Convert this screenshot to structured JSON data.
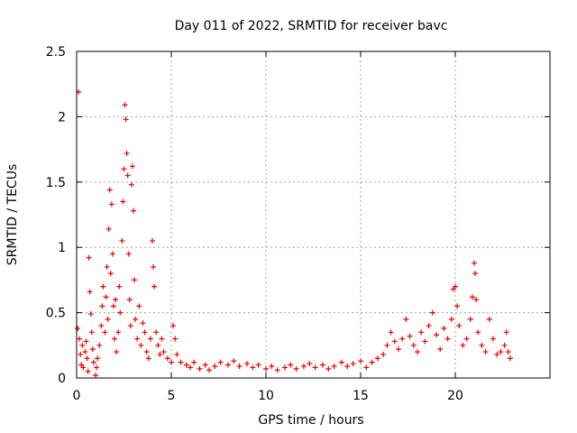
{
  "chart_data": {
    "type": "scatter",
    "title": "Day 011 of 2022, SRMTID for receiver bavc",
    "xlabel": "GPS time / hours",
    "ylabel": "SRMTID / TECUs",
    "xlim": [
      0,
      25
    ],
    "ylim": [
      0,
      2.5
    ],
    "x_ticks": [
      0,
      5,
      10,
      15,
      20
    ],
    "x_tick_labels": [
      "0",
      "5",
      "10",
      "15",
      "20"
    ],
    "y_ticks": [
      0,
      0.5,
      1,
      1.5,
      2,
      2.5
    ],
    "y_tick_labels": [
      "0",
      "0.5",
      "1",
      "1.5",
      "2",
      "2.5"
    ],
    "grid": true,
    "marker": "+",
    "color": "#ee0000",
    "series": [
      {
        "name": "SRMTID",
        "points": [
          [
            0.05,
            0.38
          ],
          [
            0.1,
            2.19
          ],
          [
            0.15,
            0.3
          ],
          [
            0.2,
            0.18
          ],
          [
            0.25,
            0.1
          ],
          [
            0.3,
            0.25
          ],
          [
            0.35,
            0.08
          ],
          [
            0.45,
            0.2
          ],
          [
            0.5,
            0.28
          ],
          [
            0.55,
            0.15
          ],
          [
            0.6,
            0.05
          ],
          [
            0.65,
            0.92
          ],
          [
            0.7,
            0.66
          ],
          [
            0.75,
            0.49
          ],
          [
            0.8,
            0.35
          ],
          [
            0.85,
            0.22
          ],
          [
            0.9,
            0.12
          ],
          [
            1.0,
            0.02
          ],
          [
            1.05,
            0.08
          ],
          [
            1.1,
            0.15
          ],
          [
            1.2,
            0.25
          ],
          [
            1.3,
            0.4
          ],
          [
            1.35,
            0.55
          ],
          [
            1.4,
            0.7
          ],
          [
            1.5,
            0.35
          ],
          [
            1.55,
            0.62
          ],
          [
            1.6,
            0.85
          ],
          [
            1.65,
            0.45
          ],
          [
            1.7,
            1.14
          ],
          [
            1.75,
            1.44
          ],
          [
            1.8,
            0.8
          ],
          [
            1.85,
            1.33
          ],
          [
            1.9,
            0.95
          ],
          [
            1.95,
            0.55
          ],
          [
            2.0,
            0.3
          ],
          [
            2.05,
            0.6
          ],
          [
            2.1,
            0.2
          ],
          [
            2.2,
            0.35
          ],
          [
            2.25,
            0.7
          ],
          [
            2.3,
            0.5
          ],
          [
            2.4,
            1.05
          ],
          [
            2.45,
            1.35
          ],
          [
            2.5,
            1.6
          ],
          [
            2.55,
            2.09
          ],
          [
            2.6,
            1.98
          ],
          [
            2.65,
            1.72
          ],
          [
            2.7,
            1.55
          ],
          [
            2.75,
            0.95
          ],
          [
            2.8,
            0.6
          ],
          [
            2.85,
            0.4
          ],
          [
            2.9,
            1.48
          ],
          [
            2.95,
            1.62
          ],
          [
            3.0,
            1.28
          ],
          [
            3.05,
            0.75
          ],
          [
            3.1,
            0.45
          ],
          [
            3.2,
            0.3
          ],
          [
            3.3,
            0.55
          ],
          [
            3.4,
            0.25
          ],
          [
            3.5,
            0.42
          ],
          [
            3.6,
            0.35
          ],
          [
            3.7,
            0.2
          ],
          [
            3.8,
            0.15
          ],
          [
            3.9,
            0.3
          ],
          [
            4.0,
            1.05
          ],
          [
            4.05,
            0.85
          ],
          [
            4.1,
            0.7
          ],
          [
            4.2,
            0.35
          ],
          [
            4.3,
            0.25
          ],
          [
            4.4,
            0.18
          ],
          [
            4.5,
            0.3
          ],
          [
            4.6,
            0.2
          ],
          [
            4.8,
            0.15
          ],
          [
            5.0,
            0.12
          ],
          [
            5.1,
            0.4
          ],
          [
            5.2,
            0.3
          ],
          [
            5.3,
            0.18
          ],
          [
            5.5,
            0.12
          ],
          [
            5.8,
            0.1
          ],
          [
            6.0,
            0.08
          ],
          [
            6.2,
            0.12
          ],
          [
            6.5,
            0.07
          ],
          [
            6.8,
            0.1
          ],
          [
            7.0,
            0.06
          ],
          [
            7.3,
            0.09
          ],
          [
            7.6,
            0.12
          ],
          [
            8.0,
            0.1
          ],
          [
            8.3,
            0.13
          ],
          [
            8.6,
            0.09
          ],
          [
            9.0,
            0.11
          ],
          [
            9.3,
            0.08
          ],
          [
            9.6,
            0.1
          ],
          [
            10.0,
            0.07
          ],
          [
            10.3,
            0.09
          ],
          [
            10.6,
            0.06
          ],
          [
            11.0,
            0.08
          ],
          [
            11.3,
            0.1
          ],
          [
            11.6,
            0.07
          ],
          [
            12.0,
            0.09
          ],
          [
            12.3,
            0.11
          ],
          [
            12.6,
            0.08
          ],
          [
            13.0,
            0.1
          ],
          [
            13.3,
            0.07
          ],
          [
            13.6,
            0.09
          ],
          [
            14.0,
            0.12
          ],
          [
            14.3,
            0.09
          ],
          [
            14.6,
            0.11
          ],
          [
            15.0,
            0.13
          ],
          [
            15.3,
            0.08
          ],
          [
            15.6,
            0.12
          ],
          [
            15.9,
            0.15
          ],
          [
            16.2,
            0.18
          ],
          [
            16.4,
            0.25
          ],
          [
            16.6,
            0.35
          ],
          [
            16.8,
            0.28
          ],
          [
            17.0,
            0.22
          ],
          [
            17.2,
            0.3
          ],
          [
            17.4,
            0.45
          ],
          [
            17.6,
            0.32
          ],
          [
            17.8,
            0.25
          ],
          [
            18.0,
            0.2
          ],
          [
            18.2,
            0.35
          ],
          [
            18.4,
            0.28
          ],
          [
            18.6,
            0.4
          ],
          [
            18.8,
            0.5
          ],
          [
            19.0,
            0.33
          ],
          [
            19.2,
            0.22
          ],
          [
            19.4,
            0.38
          ],
          [
            19.6,
            0.3
          ],
          [
            19.8,
            0.45
          ],
          [
            19.9,
            0.68
          ],
          [
            20.0,
            0.7
          ],
          [
            20.1,
            0.55
          ],
          [
            20.2,
            0.4
          ],
          [
            20.4,
            0.25
          ],
          [
            20.6,
            0.3
          ],
          [
            20.8,
            0.45
          ],
          [
            20.9,
            0.62
          ],
          [
            21.0,
            0.88
          ],
          [
            21.05,
            0.8
          ],
          [
            21.1,
            0.6
          ],
          [
            21.2,
            0.35
          ],
          [
            21.4,
            0.25
          ],
          [
            21.6,
            0.2
          ],
          [
            21.8,
            0.45
          ],
          [
            22.0,
            0.3
          ],
          [
            22.2,
            0.18
          ],
          [
            22.4,
            0.2
          ],
          [
            22.6,
            0.25
          ],
          [
            22.7,
            0.35
          ],
          [
            22.8,
            0.2
          ],
          [
            22.9,
            0.15
          ]
        ]
      }
    ]
  }
}
